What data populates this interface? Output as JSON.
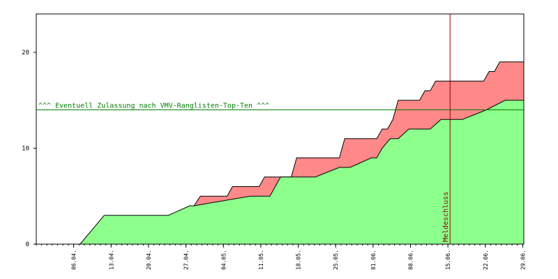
{
  "chart_data": {
    "type": "area",
    "x_ticks": [
      "06.04.",
      "13.04.",
      "20.04.",
      "27.04.",
      "04.05.",
      "11.05.",
      "18.05.",
      "25.05.",
      "01.06.",
      "08.06.",
      "15.06.",
      "22.06.",
      "29.06."
    ],
    "y_ticks": [
      "0",
      "10",
      "20"
    ],
    "ylim": [
      0,
      24
    ],
    "grid": false,
    "series": [
      {
        "name": "",
        "color": "#8cff8c",
        "x": [
          30.5,
          35,
          47,
          51,
          51.8,
          62.3,
          66,
          68,
          74.5,
          79,
          81,
          85,
          86,
          87,
          88.5,
          90,
          92,
          96,
          98,
          102,
          106.5,
          110,
          113.5
        ],
        "values": [
          0,
          3,
          3,
          4,
          4,
          5,
          5,
          7,
          7,
          8,
          8,
          9,
          9,
          10,
          11,
          11,
          12,
          12,
          13,
          13,
          14,
          15,
          15
        ]
      },
      {
        "name": "",
        "color": "#ff8888",
        "x": [
          51.8,
          53,
          58,
          59,
          64,
          65,
          70,
          71,
          79,
          80,
          86,
          87,
          88,
          89,
          90,
          94,
          95,
          96,
          97,
          106,
          107,
          108,
          109,
          113.5
        ],
        "values": [
          4,
          5,
          5,
          6,
          6,
          7,
          7,
          9,
          9,
          11,
          11,
          12,
          12,
          13,
          15,
          15,
          16,
          16,
          17,
          17,
          18,
          18,
          19,
          19
        ]
      }
    ],
    "annotations": [
      {
        "type": "hline",
        "y": 14,
        "label": "^^^ Eventuell Zulassung nach VMV-Ranglisten-Top-Ten ^^^",
        "color": "#008000"
      },
      {
        "type": "vline",
        "x": 99.7,
        "label": "Meldeschluss",
        "color": "#8b0000"
      }
    ]
  }
}
